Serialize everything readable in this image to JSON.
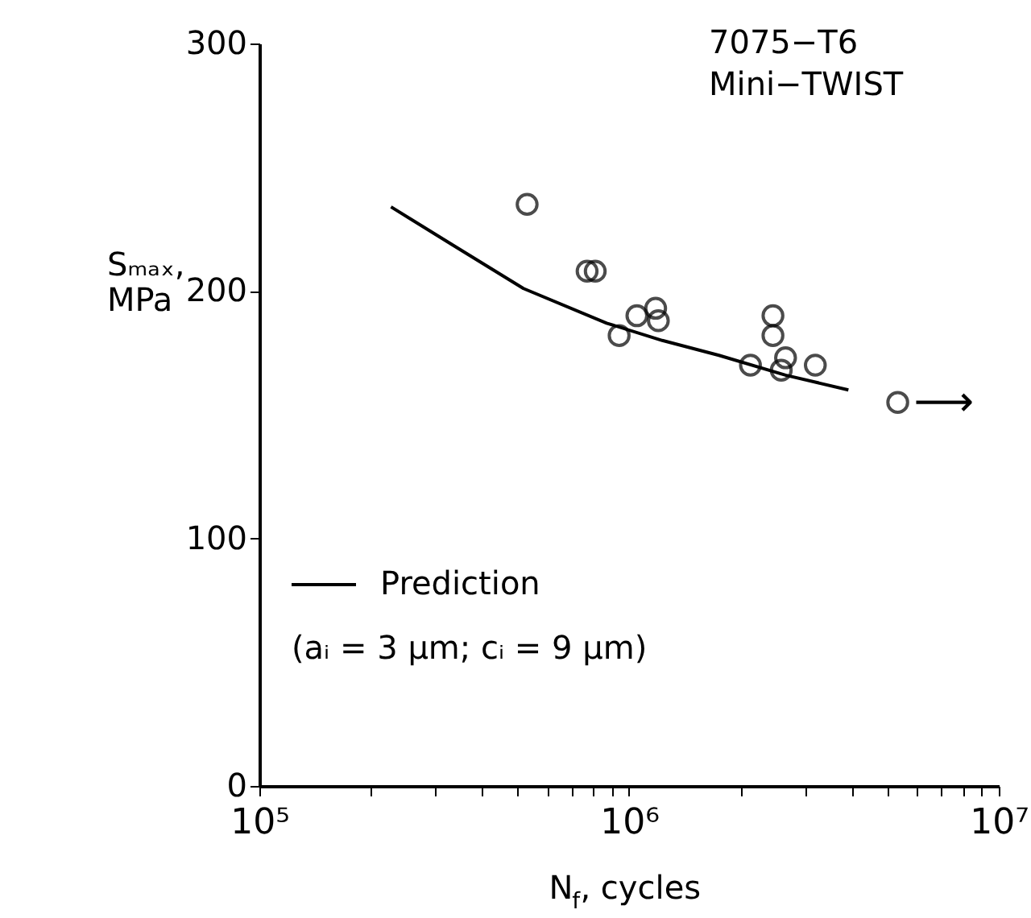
{
  "chart_data": {
    "type": "scatter",
    "xlabel": "N$_{f}$, cycles",
    "ylabel": "Sₘₐₓ,\nMPa",
    "log": "x",
    "xlim": [
      100000,
      10000000
    ],
    "ylim": [
      0,
      300
    ],
    "yticks": [
      0,
      100,
      200,
      300
    ],
    "xticks": [
      {
        "value": 100000,
        "label": "10⁵"
      },
      {
        "value": 200000,
        "label": null
      },
      {
        "value": 300000,
        "label": null
      },
      {
        "value": 400000,
        "label": null
      },
      {
        "value": 500000,
        "label": null
      },
      {
        "value": 600000,
        "label": null
      },
      {
        "value": 700000,
        "label": null
      },
      {
        "value": 800000,
        "label": null
      },
      {
        "value": 900000,
        "label": null
      },
      {
        "value": 1000000,
        "label": "10⁶"
      },
      {
        "value": 2000000,
        "label": null
      },
      {
        "value": 3000000,
        "label": null
      },
      {
        "value": 4000000,
        "label": null
      },
      {
        "value": 5000000,
        "label": null
      },
      {
        "value": 6000000,
        "label": null
      },
      {
        "value": 7000000,
        "label": null
      },
      {
        "value": 8000000,
        "label": null
      },
      {
        "value": 9000000,
        "label": null
      },
      {
        "value": 10000000,
        "label": "10⁷"
      }
    ],
    "grid": false,
    "legend": "bottom left",
    "series": [
      {
        "marker": "circle",
        "color": "#000000",
        "x": [
          530000,
          770000,
          810000,
          940000,
          1050000,
          1180000,
          1200000,
          2130000,
          2450000,
          2450000,
          2650000,
          2580000,
          3190000,
          5330000
        ],
        "values": [
          235,
          208,
          208,
          182,
          190,
          193,
          188,
          170,
          190,
          182,
          173,
          168,
          170,
          155
        ]
      },
      {
        "type": "line",
        "name": "Prediction",
        "color": "#000000",
        "line_style": "solid",
        "x": [
          227000,
          330000,
          518000,
          870000,
          1230000,
          1750000,
          2650000,
          3920000
        ],
        "values": [
          234,
          219,
          201,
          187,
          180,
          174,
          166,
          160
        ]
      }
    ],
    "annotations": [
      "7075−T6",
      "Mini−TWIST",
      "(aᵢ = 3 μm; cᵢ = 9 μm)",
      "⟶"
    ]
  }
}
